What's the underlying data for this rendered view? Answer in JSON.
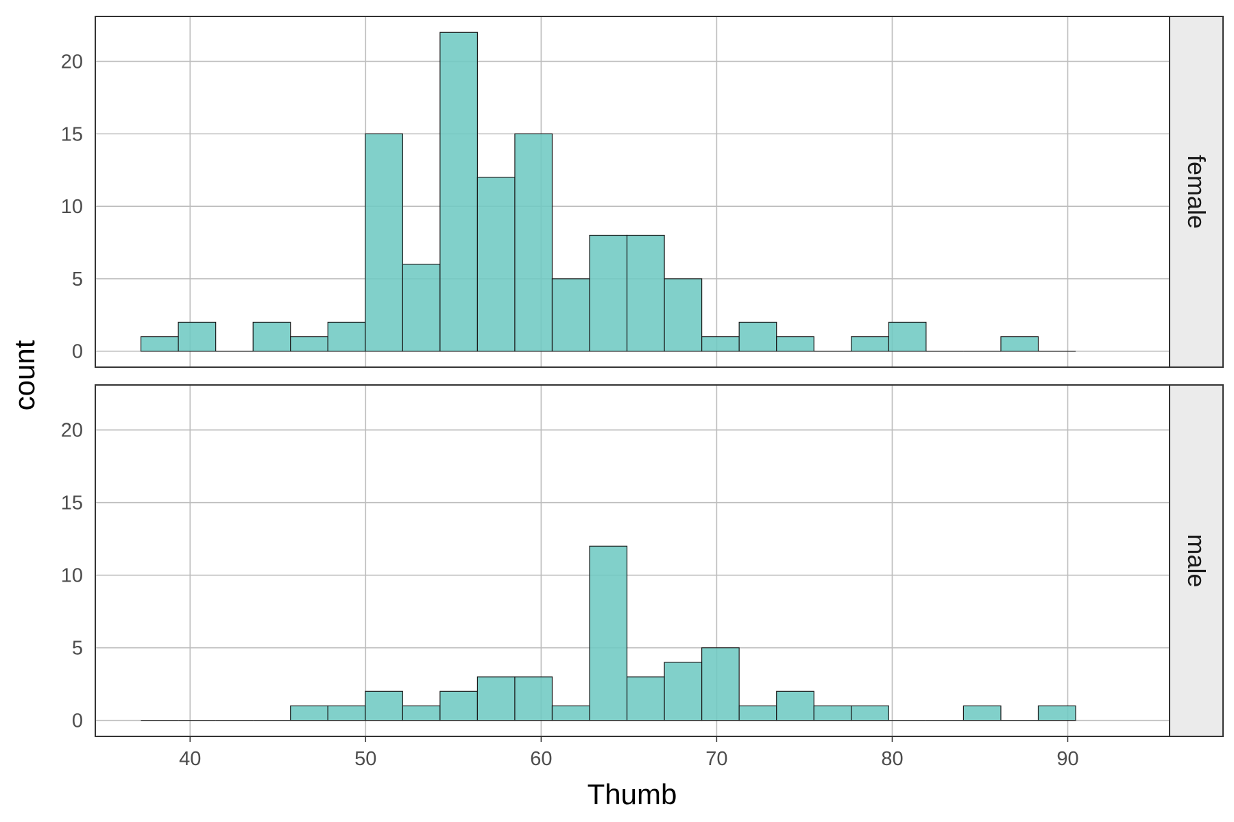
{
  "chart_data": {
    "type": "histogram",
    "xlabel": "Thumb",
    "ylabel": "count",
    "xlim": [
      34.6,
      95.8
    ],
    "ylim": [
      -1.1,
      23.1
    ],
    "x_ticks": [
      40,
      50,
      60,
      70,
      80,
      90
    ],
    "y_ticks": [
      0,
      5,
      10,
      15,
      20
    ],
    "grid": true,
    "bar_color": "#6fc9c3",
    "bar_outline_color": "#1a1a1a",
    "bins": {
      "start": 37.2,
      "width": 2.13,
      "count": 25
    },
    "facets": [
      {
        "label": "female",
        "counts": [
          1,
          2,
          0,
          2,
          1,
          2,
          15,
          6,
          22,
          12,
          15,
          5,
          8,
          8,
          5,
          1,
          2,
          1,
          0,
          1,
          2,
          0,
          0,
          1,
          0
        ]
      },
      {
        "label": "male",
        "counts": [
          0,
          0,
          0,
          0,
          1,
          1,
          2,
          1,
          2,
          3,
          3,
          1,
          12,
          3,
          4,
          5,
          1,
          2,
          1,
          1,
          0,
          0,
          1,
          0,
          1
        ]
      }
    ]
  }
}
